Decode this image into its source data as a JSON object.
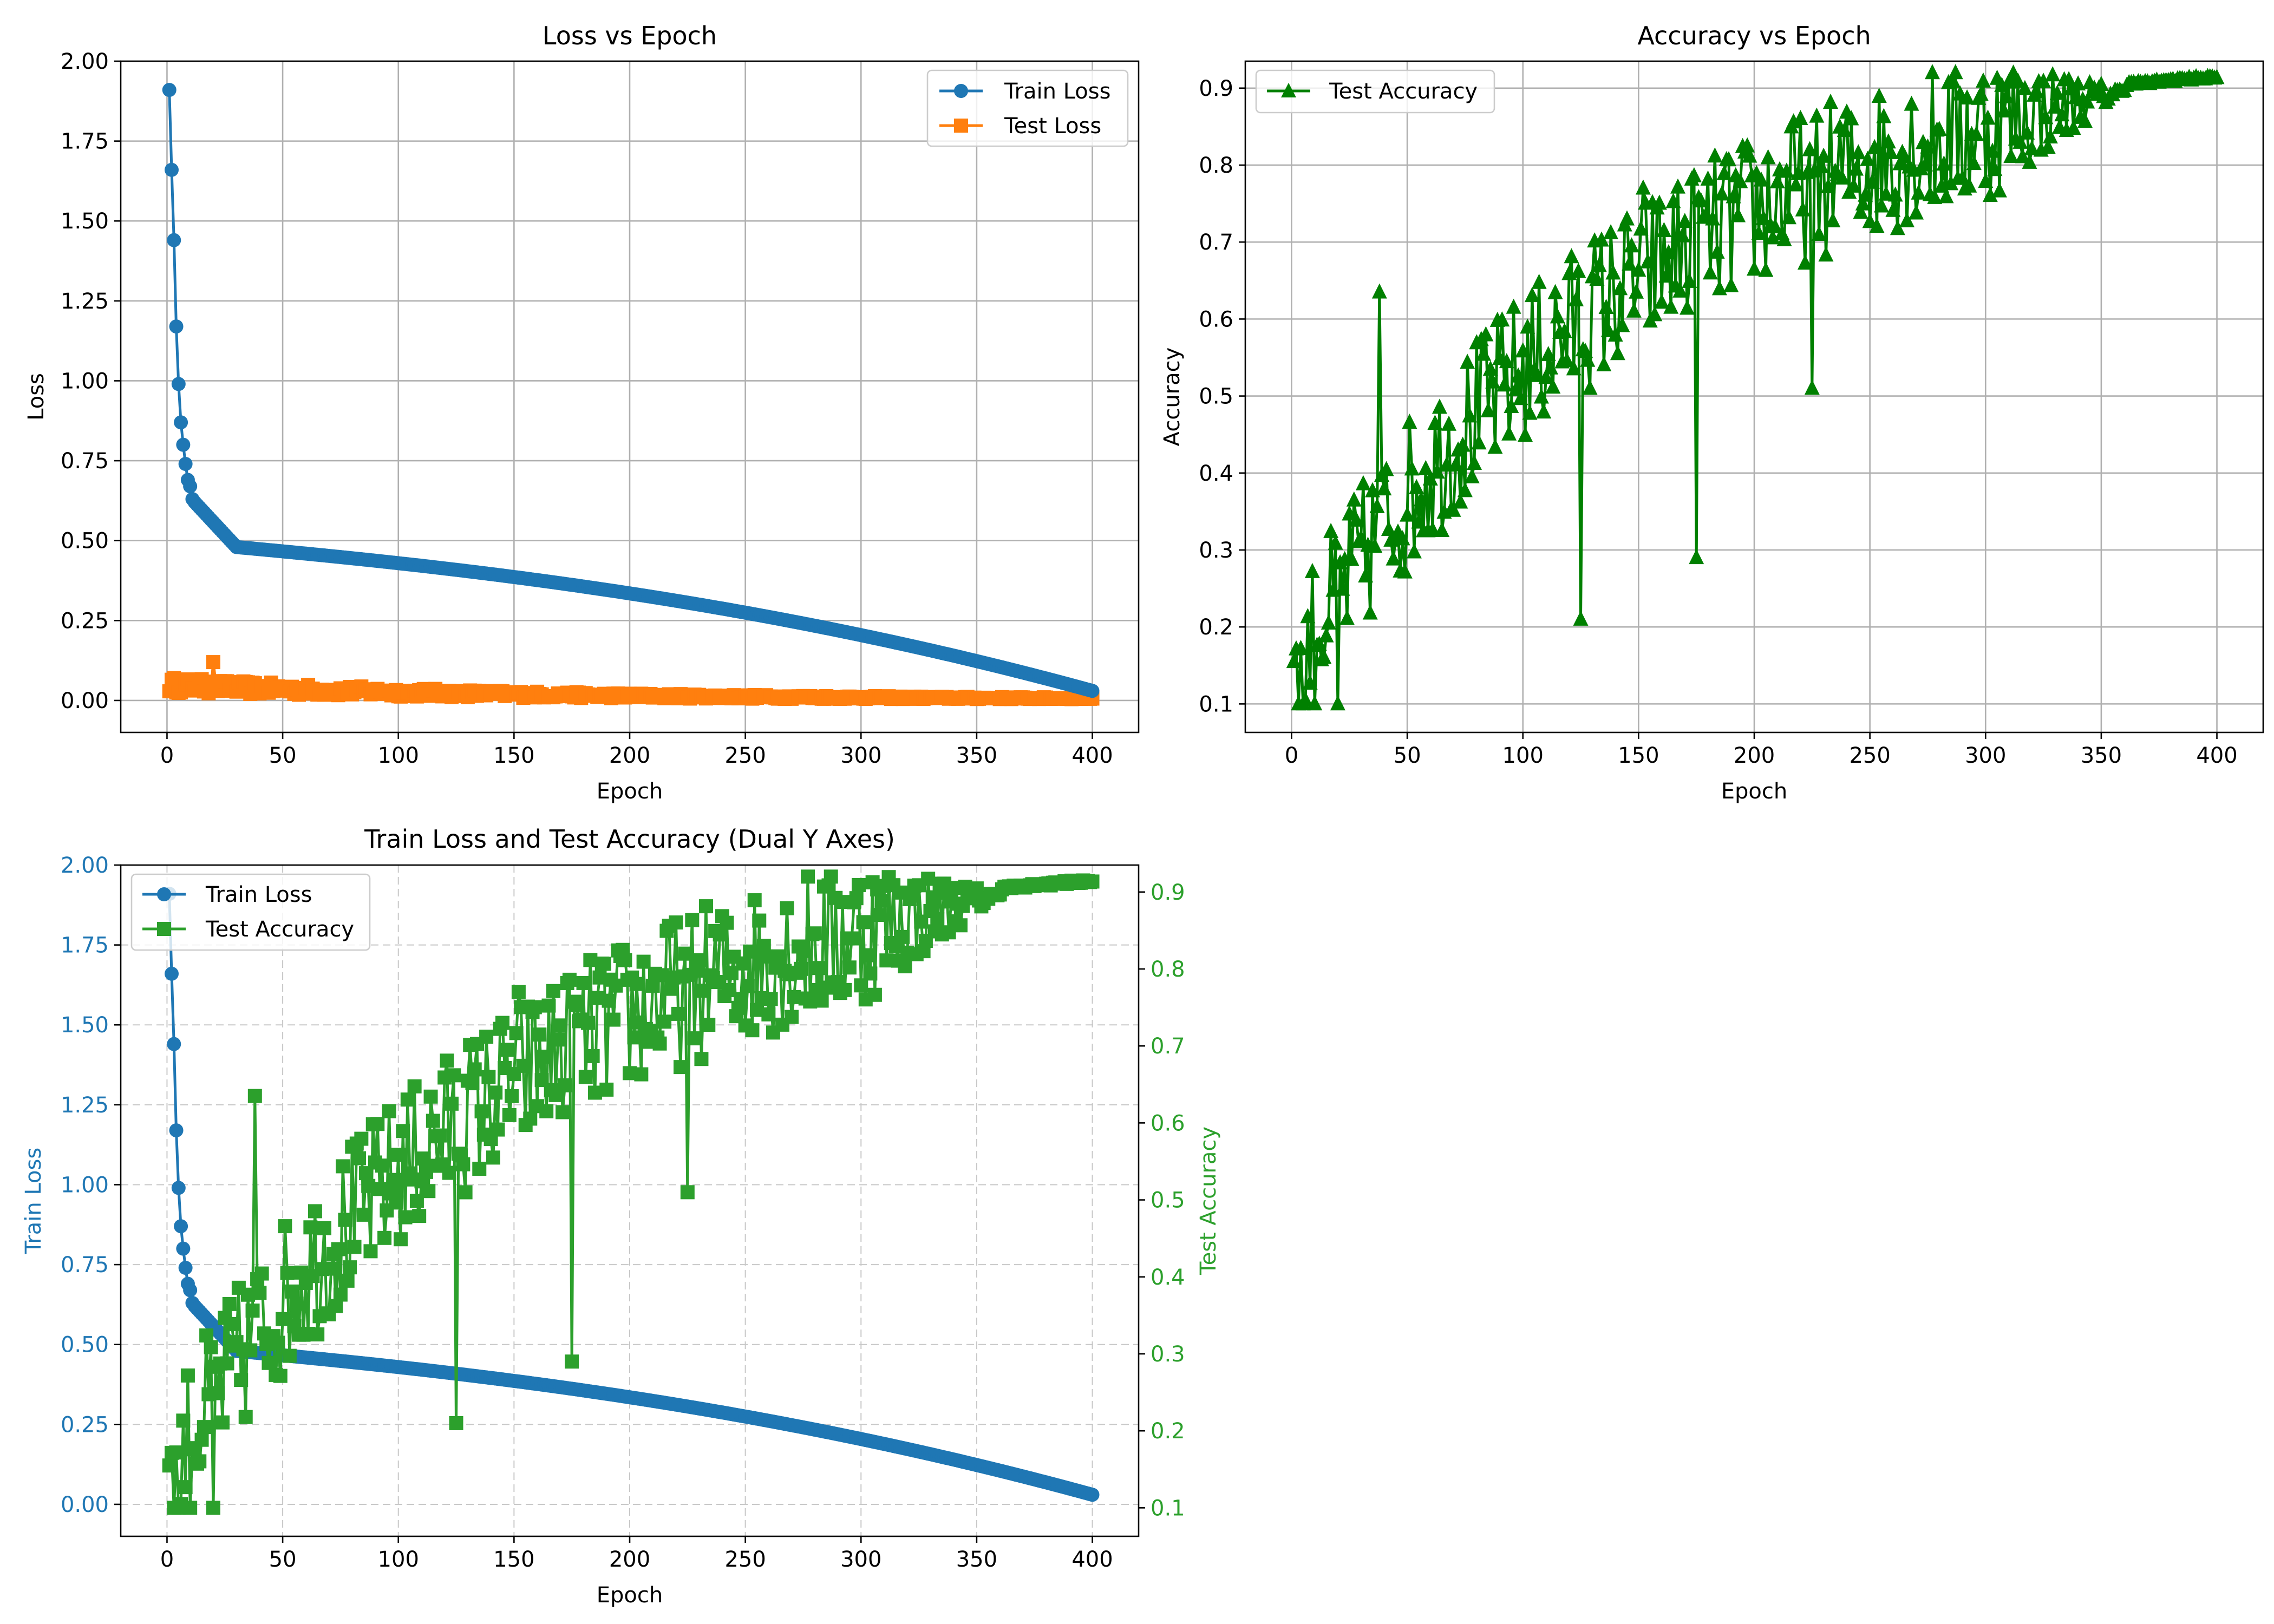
{
  "colors": {
    "train_loss": "#1f77b4",
    "test_loss": "#ff7f0e",
    "test_accuracy_panel2": "#008000",
    "test_accuracy_panel3": "#2ca02c",
    "grid": "#b0b0b0",
    "axes": "#000000"
  },
  "chart_data": [
    {
      "id": "loss",
      "type": "line",
      "title": "Loss vs Epoch",
      "xlabel": "Epoch",
      "ylabel": "Loss",
      "xlim": [
        -20,
        420
      ],
      "ylim": [
        -0.1,
        2.0
      ],
      "xticks": [
        0,
        50,
        100,
        150,
        200,
        250,
        300,
        350,
        400
      ],
      "xtick_labels": [
        "0",
        "50",
        "100",
        "150",
        "200",
        "250",
        "300",
        "350",
        "400"
      ],
      "yticks": [
        0,
        0.25,
        0.5,
        0.75,
        1.0,
        1.25,
        1.5,
        1.75,
        2.0
      ],
      "ytick_labels": [
        "0.00",
        "0.25",
        "0.50",
        "0.75",
        "1.00",
        "1.25",
        "1.50",
        "1.75",
        "2.00"
      ],
      "grid": true,
      "legend_position": "upper-right",
      "legend": [
        "Train Loss",
        "Test Loss"
      ],
      "series": [
        {
          "name": "Train Loss",
          "marker": "circle",
          "color": "#1f77b4",
          "description": "epochs 1-400; steep drop from 1.91 to ~0.5 by epoch 20, slow decline to ~0.03 at 400",
          "anchor_points": [
            [
              1,
              1.91
            ],
            [
              3,
              1.44
            ],
            [
              4,
              1.17
            ],
            [
              5,
              0.99
            ],
            [
              6,
              0.87
            ],
            [
              7,
              0.8
            ],
            [
              8,
              0.74
            ],
            [
              9,
              0.69
            ],
            [
              10,
              0.67
            ],
            [
              11,
              0.63
            ],
            [
              12,
              0.62
            ],
            [
              15,
              0.58
            ],
            [
              20,
              0.53
            ],
            [
              30,
              0.48
            ],
            [
              40,
              0.455
            ],
            [
              50,
              0.44
            ],
            [
              75,
              0.41
            ],
            [
              100,
              0.385
            ],
            [
              125,
              0.365
            ],
            [
              150,
              0.345
            ],
            [
              175,
              0.325
            ],
            [
              200,
              0.3
            ],
            [
              225,
              0.27
            ],
            [
              250,
              0.235
            ],
            [
              275,
              0.2
            ],
            [
              300,
              0.155
            ],
            [
              325,
              0.11
            ],
            [
              350,
              0.065
            ],
            [
              375,
              0.04
            ],
            [
              400,
              0.03
            ]
          ]
        },
        {
          "name": "Test Loss",
          "marker": "square",
          "color": "#ff7f0e",
          "description": "epochs 1-400; noisy around 0.04 early (peak 0.12 near epoch 20), decays to ~0.005",
          "anchor_points": [
            [
              1,
              0.04
            ],
            [
              20,
              0.12
            ],
            [
              50,
              0.045
            ],
            [
              100,
              0.03
            ],
            [
              150,
              0.02
            ],
            [
              200,
              0.012
            ],
            [
              250,
              0.008
            ],
            [
              300,
              0.005
            ],
            [
              400,
              0.004
            ]
          ]
        }
      ]
    },
    {
      "id": "accuracy",
      "type": "line",
      "title": "Accuracy vs Epoch",
      "xlabel": "Epoch",
      "ylabel": "Accuracy",
      "xlim": [
        -20,
        420
      ],
      "ylim": [
        0.063,
        0.935
      ],
      "xticks": [
        0,
        50,
        100,
        150,
        200,
        250,
        300,
        350,
        400
      ],
      "xtick_labels": [
        "0",
        "50",
        "100",
        "150",
        "200",
        "250",
        "300",
        "350",
        "400"
      ],
      "yticks": [
        0.1,
        0.2,
        0.3,
        0.4,
        0.5,
        0.6,
        0.7,
        0.8,
        0.9
      ],
      "ytick_labels": [
        "0.1",
        "0.2",
        "0.3",
        "0.4",
        "0.5",
        "0.6",
        "0.7",
        "0.8",
        "0.9"
      ],
      "grid": true,
      "legend_position": "upper-left",
      "legend": [
        "Test Accuracy"
      ],
      "series": [
        {
          "name": "Test Accuracy",
          "marker": "triangle",
          "color": "#008000",
          "description": "epochs 1-400; very noisy rise from ~0.15 to ~0.915, noise shrinks after epoch 300",
          "anchor_points": [
            [
              1,
              0.155
            ],
            [
              5,
              0.1
            ],
            [
              20,
              0.1
            ],
            [
              38,
              0.635
            ],
            [
              50,
              0.38
            ],
            [
              100,
              0.45
            ],
            [
              125,
              0.21
            ],
            [
              150,
              0.65
            ],
            [
              152,
              0.77
            ],
            [
              175,
              0.29
            ],
            [
              200,
              0.72
            ],
            [
              225,
              0.51
            ],
            [
              242,
              0.86
            ],
            [
              250,
              0.8
            ],
            [
              300,
              0.86
            ],
            [
              350,
              0.905
            ],
            [
              400,
              0.915
            ]
          ]
        }
      ]
    },
    {
      "id": "dual",
      "type": "line",
      "title": "Train Loss and Test Accuracy (Dual Y Axes)",
      "xlabel": "Epoch",
      "ylabel": "Train Loss",
      "ylabel_right": "Test Accuracy",
      "xlim": [
        -20,
        420
      ],
      "ylim": [
        -0.1,
        2.0
      ],
      "ylim_right": [
        0.063,
        0.935
      ],
      "xticks": [
        0,
        50,
        100,
        150,
        200,
        250,
        300,
        350,
        400
      ],
      "xtick_labels": [
        "0",
        "50",
        "100",
        "150",
        "200",
        "250",
        "300",
        "350",
        "400"
      ],
      "yticks": [
        0,
        0.25,
        0.5,
        0.75,
        1.0,
        1.25,
        1.5,
        1.75,
        2.0
      ],
      "ytick_labels": [
        "0.00",
        "0.25",
        "0.50",
        "0.75",
        "1.00",
        "1.25",
        "1.50",
        "1.75",
        "2.00"
      ],
      "yticks_right": [
        0.1,
        0.2,
        0.3,
        0.4,
        0.5,
        0.6,
        0.7,
        0.8,
        0.9
      ],
      "ytick_labels_right": [
        "0.1",
        "0.2",
        "0.3",
        "0.4",
        "0.5",
        "0.6",
        "0.7",
        "0.8",
        "0.9"
      ],
      "grid": "dashed",
      "legend_position": "upper-left",
      "legend": [
        "Train Loss",
        "Test Accuracy"
      ],
      "series": [
        {
          "name": "Train Loss",
          "axis": "left",
          "marker": "circle",
          "color": "#1f77b4",
          "description": "same series as Loss vs Epoch panel"
        },
        {
          "name": "Test Accuracy",
          "axis": "right",
          "marker": "square",
          "color": "#2ca02c",
          "description": "same series as Accuracy vs Epoch panel"
        }
      ]
    }
  ]
}
